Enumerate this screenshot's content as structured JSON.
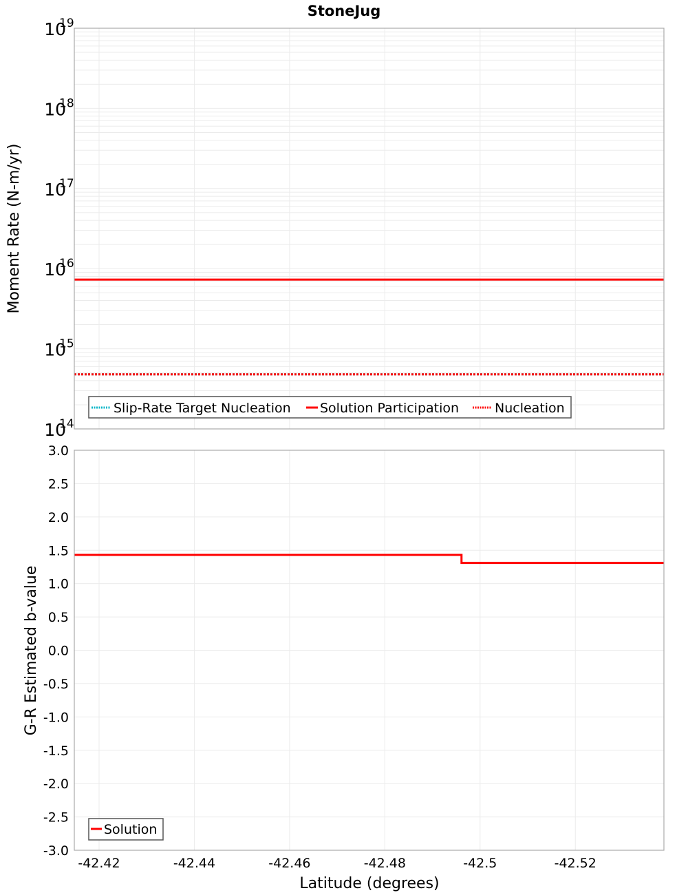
{
  "chart_data": [
    {
      "type": "line",
      "title": "StoneJug",
      "xlabel": "Latitude (degrees)",
      "ylabel": "Moment Rate (N-m/yr)",
      "yscale": "log",
      "ylim": [
        100000000000000.0,
        1e+19
      ],
      "xlim": [
        -42.4148,
        -42.5386
      ],
      "x_reversed": true,
      "grid": true,
      "y_ticks": [
        {
          "base": "10",
          "exp": "19",
          "value": 1e+19
        },
        {
          "base": "10",
          "exp": "18",
          "value": 1e+18
        },
        {
          "base": "10",
          "exp": "17",
          "value": 1e+17
        },
        {
          "base": "10",
          "exp": "16",
          "value": 1e+16
        },
        {
          "base": "10",
          "exp": "15",
          "value": 1000000000000000.0
        },
        {
          "base": "10",
          "exp": "14",
          "value": 100000000000000.0
        }
      ],
      "legend": {
        "position": "lower-left",
        "entries": [
          "Slip-Rate Target Nucleation",
          "Solution Participation",
          "Nucleation"
        ]
      },
      "series": [
        {
          "name": "Slip-Rate Target Nucleation",
          "color": "#00b5c8",
          "style": "dotted",
          "x": [
            -42.4148,
            -42.446,
            -42.446,
            -42.4961,
            -42.4961,
            -42.5386
          ],
          "values": [
            480000000000000.0,
            480000000000000.0,
            480000000000000.0,
            480000000000000.0,
            480000000000000.0,
            480000000000000.0
          ]
        },
        {
          "name": "Solution Participation",
          "color": "#ff0000",
          "style": "solid",
          "x": [
            -42.4148,
            -42.446,
            -42.446,
            -42.4961,
            -42.4961,
            -42.5386
          ],
          "values": [
            7300000000000000.0,
            7300000000000000.0,
            7300000000000000.0,
            7300000000000000.0,
            7300000000000000.0,
            7300000000000000.0
          ]
        },
        {
          "name": "Nucleation",
          "color": "#ff0000",
          "style": "dotted",
          "x": [
            -42.4148,
            -42.446,
            -42.446,
            -42.4961,
            -42.4961,
            -42.5386
          ],
          "values": [
            480000000000000.0,
            480000000000000.0,
            480000000000000.0,
            480000000000000.0,
            480000000000000.0,
            480000000000000.0
          ]
        }
      ]
    },
    {
      "type": "line",
      "title": "",
      "xlabel": "Latitude (degrees)",
      "ylabel": "G-R Estimated b-value",
      "ylim": [
        -3.0,
        3.0
      ],
      "xlim": [
        -42.4148,
        -42.5386
      ],
      "x_reversed": true,
      "grid": true,
      "y_ticks": [
        "3.0",
        "2.5",
        "2.0",
        "1.5",
        "1.0",
        "0.5",
        "0.0",
        "-0.5",
        "-1.0",
        "-1.5",
        "-2.0",
        "-2.5",
        "-3.0"
      ],
      "x_ticks": [
        "-42.42",
        "-42.44",
        "-42.46",
        "-42.48",
        "-42.5",
        "-42.52"
      ],
      "legend": {
        "position": "lower-left",
        "entries": [
          "Solution"
        ]
      },
      "series": [
        {
          "name": "Solution",
          "color": "#ff0000",
          "style": "solid",
          "x": [
            -42.4148,
            -42.446,
            -42.446,
            -42.4961,
            -42.4961,
            -42.5386
          ],
          "values": [
            1.43,
            1.43,
            1.43,
            1.43,
            1.31,
            1.31
          ]
        }
      ]
    }
  ],
  "labels": {
    "title": "StoneJug",
    "top_ylabel": "Moment Rate (N-m/yr)",
    "bottom_ylabel": "G-R Estimated b-value",
    "xlabel": "Latitude (degrees)",
    "legend_top": [
      "Slip-Rate Target Nucleation",
      "Solution Participation",
      "Nucleation"
    ],
    "legend_bottom": [
      "Solution"
    ]
  }
}
